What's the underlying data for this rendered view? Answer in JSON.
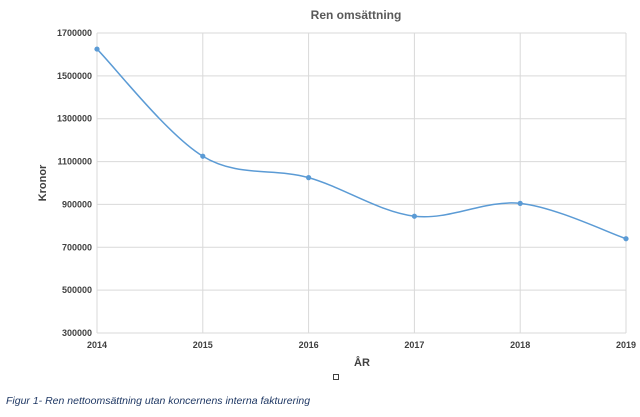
{
  "chart_data": {
    "type": "line",
    "title": "Ren omsättning",
    "xlabel": "ÅR",
    "ylabel": "Kronor",
    "x": [
      "2014",
      "2015",
      "2016",
      "2017",
      "2018",
      "2019"
    ],
    "series": [
      {
        "values": [
          1625000,
          1125000,
          1025000,
          845000,
          905000,
          740000
        ]
      }
    ],
    "yticks": [
      300000,
      500000,
      700000,
      900000,
      1100000,
      1300000,
      1500000,
      1700000
    ],
    "ylim": [
      300000,
      1700000
    ],
    "grid": true,
    "smooth": true,
    "color": "#5b9bd5"
  },
  "caption": "Figur 1- Ren nettoomsättning utan koncernens interna fakturering"
}
